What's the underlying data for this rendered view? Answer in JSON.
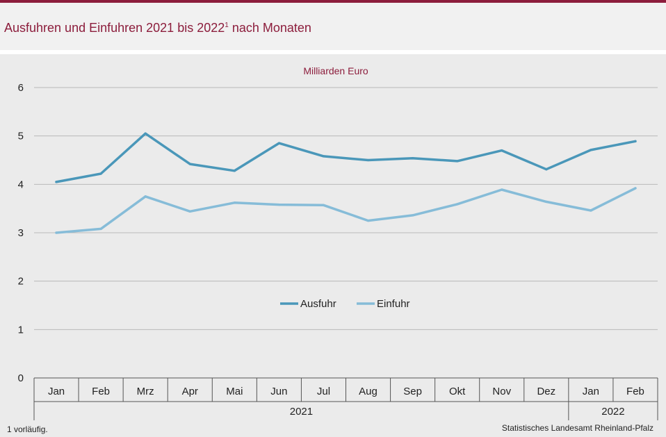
{
  "header": {
    "title": "Ausfuhren und Einfuhren 2021 bis 2022",
    "title_footnote_mark": "1",
    "title_suffix": " nach Monaten"
  },
  "chart_data": {
    "type": "line",
    "unit_label": "Milliarden Euro",
    "categories": [
      "Jan",
      "Feb",
      "Mrz",
      "Apr",
      "Mai",
      "Jun",
      "Jul",
      "Aug",
      "Sep",
      "Okt",
      "Nov",
      "Dez",
      "Jan",
      "Feb"
    ],
    "year_groups": [
      {
        "label": "2021",
        "count": 12
      },
      {
        "label": "2022",
        "count": 2
      }
    ],
    "series": [
      {
        "name": "Ausfuhr",
        "color": "#4a97b9",
        "values": [
          4.05,
          4.22,
          5.05,
          4.42,
          4.28,
          4.85,
          4.58,
          4.5,
          4.54,
          4.48,
          4.7,
          4.31,
          4.71,
          4.89
        ]
      },
      {
        "name": "Einfuhr",
        "color": "#86bcd8",
        "values": [
          3.0,
          3.08,
          3.75,
          3.44,
          3.62,
          3.58,
          3.57,
          3.25,
          3.36,
          3.59,
          3.89,
          3.64,
          3.46,
          3.92
        ]
      }
    ],
    "ylim": [
      0,
      6
    ],
    "yticks": [
      0,
      1,
      2,
      3,
      4,
      5,
      6
    ],
    "grid": true,
    "legend_position": "center"
  },
  "footer": {
    "footnote": "1 vorläufig.",
    "source": "Statistisches Landesamt  Rheinland-Pfalz"
  }
}
